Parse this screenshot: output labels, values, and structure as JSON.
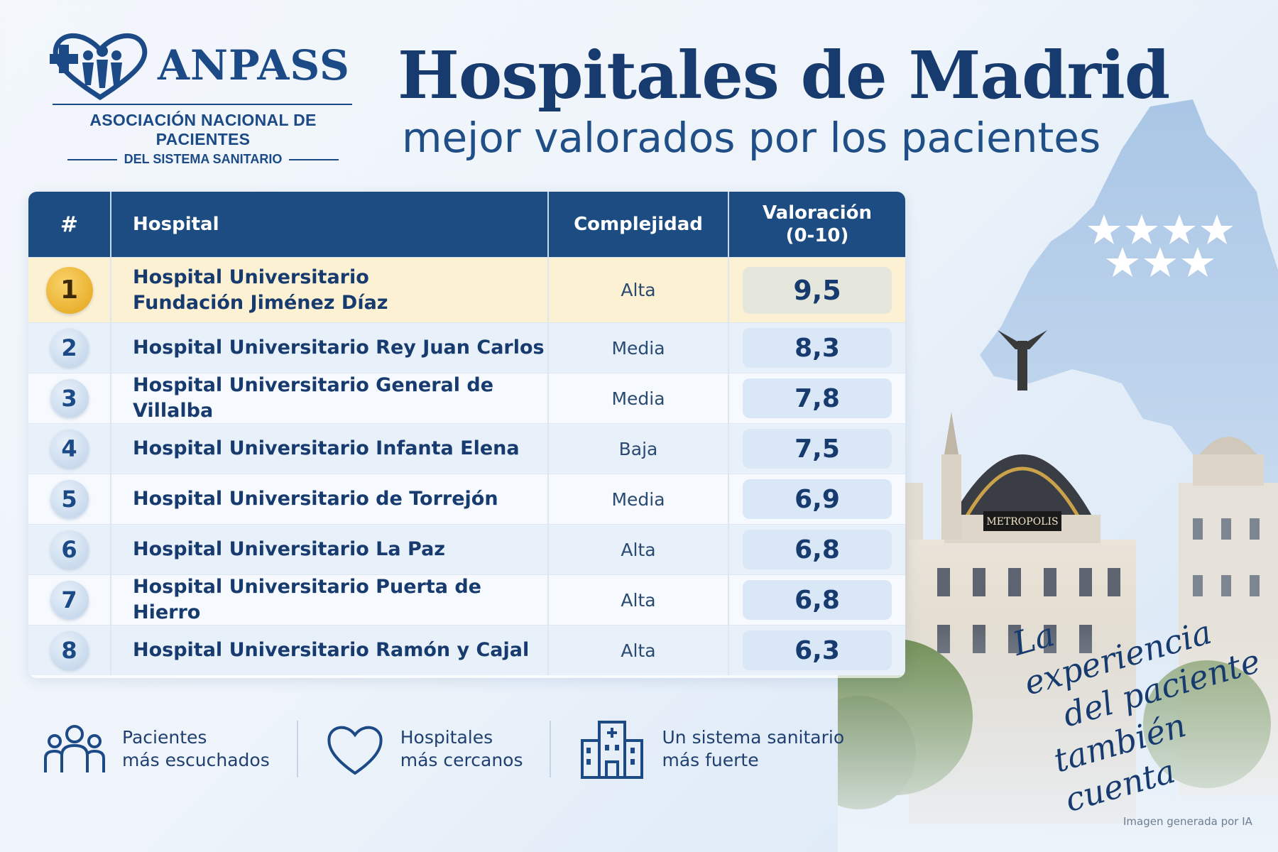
{
  "logo": {
    "name": "ANPASS",
    "line1": "ASOCIACIÓN NACIONAL DE PACIENTES",
    "line2": "DEL SISTEMA SANITARIO"
  },
  "title": "Hospitales de Madrid",
  "subtitle": "mejor valorados por los pacientes",
  "table": {
    "headers": {
      "rank": "#",
      "hospital": "Hospital",
      "complexity": "Complejidad",
      "rating_line1": "Valoración",
      "rating_line2": "(0-10)"
    },
    "rows": [
      {
        "rank": "1",
        "name_line1": "Hospital Universitario",
        "name_line2": "Fundación Jiménez Díaz",
        "complexity": "Alta",
        "rating": "9,5"
      },
      {
        "rank": "2",
        "name": "Hospital Universitario Rey Juan Carlos",
        "complexity": "Media",
        "rating": "8,3"
      },
      {
        "rank": "3",
        "name": "Hospital Universitario General de Villalba",
        "complexity": "Media",
        "rating": "7,8"
      },
      {
        "rank": "4",
        "name": "Hospital Universitario Infanta Elena",
        "complexity": "Baja",
        "rating": "7,5"
      },
      {
        "rank": "5",
        "name": "Hospital Universitario de Torrejón",
        "complexity": "Media",
        "rating": "6,9"
      },
      {
        "rank": "6",
        "name": "Hospital Universitario La Paz",
        "complexity": "Alta",
        "rating": "6,8"
      },
      {
        "rank": "7",
        "name": "Hospital Universitario Puerta de Hierro",
        "complexity": "Alta",
        "rating": "6,8"
      },
      {
        "rank": "8",
        "name": "Hospital Universitario Ramón y Cajal",
        "complexity": "Alta",
        "rating": "6,3"
      }
    ]
  },
  "features": [
    {
      "icon": "people-icon",
      "line1": "Pacientes",
      "line2": "más escuchados"
    },
    {
      "icon": "heart-icon",
      "line1": "Hospitales",
      "line2": "más cercanos"
    },
    {
      "icon": "hospital-building-icon",
      "line1": "Un sistema sanitario",
      "line2": "más fuerte"
    }
  ],
  "slogan": {
    "line1": "La experiencia",
    "line2": "del paciente",
    "line3": "también cuenta"
  },
  "building_sign": "METROPOLIS",
  "note": "Imagen generada por IA",
  "colors": {
    "primary": "#1d4c82",
    "gold": "#e4a316",
    "highlight_row": "#fdf1d3",
    "score_bg": "#d9e7f6"
  }
}
